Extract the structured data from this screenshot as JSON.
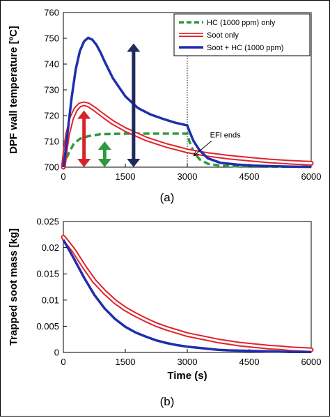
{
  "figure": {
    "panel_a_label": "(a)",
    "panel_b_label": "(b)"
  },
  "chart_data": [
    {
      "type": "line",
      "panel": "a",
      "title": "",
      "xlabel": "",
      "ylabel": "DPF wall temperature [ºC]",
      "xlim": [
        0,
        6000
      ],
      "ylim": [
        700,
        760
      ],
      "x_ticks": [
        0,
        1500,
        3000,
        4500,
        6000
      ],
      "y_ticks": [
        700,
        710,
        720,
        730,
        740,
        750,
        760
      ],
      "grid": false,
      "legend_position": "top-right",
      "series": [
        {
          "name": "HC (1000 ppm) only",
          "color": "#2e9a3e",
          "style": "dashed",
          "x": [
            0,
            60,
            150,
            250,
            400,
            600,
            900,
            1500,
            2000,
            2500,
            3000,
            3050,
            3150,
            3300,
            3500,
            3800,
            4200,
            5000,
            6000
          ],
          "y": [
            700,
            703,
            706,
            709,
            711,
            712,
            712.8,
            713,
            713,
            713,
            713,
            710,
            706,
            703,
            701.3,
            700.6,
            700.3,
            700.2,
            700.2
          ]
        },
        {
          "name": "Soot only",
          "color": "#e0232b",
          "style": "double",
          "x": [
            0,
            50,
            100,
            200,
            300,
            400,
            500,
            600,
            700,
            800,
            1000,
            1200,
            1500,
            2000,
            2500,
            3000,
            3500,
            4000,
            4500,
            5000,
            5500,
            6000
          ],
          "y": [
            700,
            707,
            712.5,
            719,
            722.5,
            724.2,
            724.6,
            724.2,
            723.2,
            722,
            719.6,
            717.3,
            714.6,
            711,
            708.4,
            706.3,
            704.9,
            703.9,
            703.1,
            702.4,
            701.9,
            701.5
          ]
        },
        {
          "name": "Soot + HC (1000 ppm)",
          "color": "#1f2fad",
          "style": "solid",
          "x": [
            0,
            50,
            100,
            200,
            300,
            400,
            500,
            600,
            700,
            800,
            900,
            1000,
            1200,
            1500,
            1800,
            2100,
            2400,
            2700,
            3000,
            3050,
            3150,
            3300,
            3500,
            3800,
            4200,
            4600,
            5000,
            5500,
            6000
          ],
          "y": [
            700,
            706,
            713,
            727,
            738,
            745,
            748.8,
            750.2,
            749.5,
            747.5,
            744.5,
            741,
            734.5,
            727.5,
            723,
            720.5,
            718.8,
            717.3,
            716.2,
            714,
            710.2,
            706.5,
            703.4,
            701.7,
            701,
            700.6,
            700.4,
            700.2,
            700.1
          ]
        }
      ],
      "annotations": [
        {
          "text": "EFI ends",
          "x": 3550,
          "y": 711.5
        },
        {
          "type": "double-arrow",
          "color": "#d8232a",
          "x": 500,
          "y_from": 700,
          "y_to": 722
        },
        {
          "type": "double-arrow",
          "color": "#2e9a3e",
          "x": 1000,
          "y_from": 700,
          "y_to": 710
        },
        {
          "type": "double-arrow",
          "color": "#1f2a5c",
          "x": 1700,
          "y_from": 700,
          "y_to": 748
        },
        {
          "type": "vertical-dotted-line",
          "x": 3000,
          "y_from": 700,
          "y_to": 748
        }
      ]
    },
    {
      "type": "line",
      "panel": "b",
      "title": "",
      "xlabel": "Time (s)",
      "ylabel": "Trapped soot mass [kg]",
      "xlim": [
        0,
        6000
      ],
      "ylim": [
        0,
        0.025
      ],
      "x_ticks": [
        0,
        1500,
        3000,
        4500,
        6000
      ],
      "y_ticks": [
        0,
        0.005,
        0.01,
        0.015,
        0.02,
        0.025
      ],
      "y_tick_labels": [
        "0",
        "0.005",
        "0.01",
        "0.015",
        "0.02",
        "0.025"
      ],
      "grid": false,
      "series": [
        {
          "color": "#e0232b",
          "style": "double",
          "x": [
            0,
            250,
            500,
            750,
            1000,
            1250,
            1500,
            1750,
            2000,
            2250,
            2500,
            2750,
            3000,
            3250,
            3500,
            3750,
            4000,
            4250,
            4500,
            4750,
            5000,
            5250,
            5500,
            5750,
            6000
          ],
          "y": [
            0.022,
            0.0195,
            0.0164,
            0.0136,
            0.0115,
            0.0097,
            0.0083,
            0.0072,
            0.0062,
            0.0053,
            0.0046,
            0.004,
            0.0034,
            0.003,
            0.0026,
            0.0022,
            0.0019,
            0.0016,
            0.0014,
            0.0012,
            0.001,
            0.0009,
            0.0007,
            0.0006,
            0.0005
          ]
        },
        {
          "color": "#1f2fad",
          "style": "solid",
          "x": [
            0,
            250,
            500,
            750,
            1000,
            1250,
            1500,
            1750,
            2000,
            2250,
            2500,
            2750,
            3000,
            3250,
            3500,
            3750,
            4000,
            4500,
            5000,
            5500,
            6000
          ],
          "y": [
            0.0215,
            0.018,
            0.0143,
            0.011,
            0.0084,
            0.0064,
            0.0049,
            0.0038,
            0.003,
            0.0023,
            0.0018,
            0.0014,
            0.0011,
            0.0009,
            0.0007,
            0.0005,
            0.0004,
            0.0003,
            0.0002,
            0.0001,
            0.0001
          ]
        }
      ],
      "annotations": []
    }
  ]
}
